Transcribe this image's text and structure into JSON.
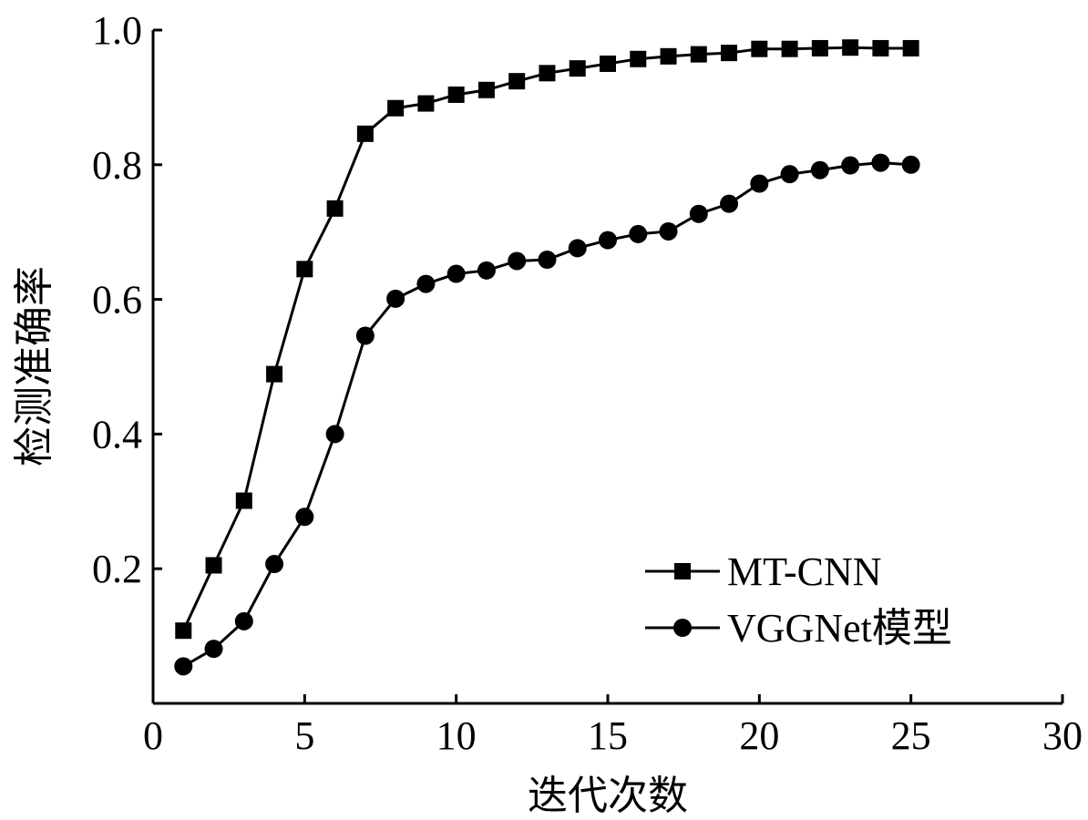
{
  "chart_data": {
    "type": "line",
    "title": "",
    "xlabel": "迭代次数",
    "ylabel": "检测准确率",
    "xlim": [
      0,
      30
    ],
    "ylim": [
      0,
      1.0
    ],
    "xticks": [
      0,
      5,
      10,
      15,
      20,
      25,
      30
    ],
    "xtick_labels": [
      "0",
      "5",
      "10",
      "15",
      "20",
      "25",
      "30"
    ],
    "yticks": [
      0.2,
      0.4,
      0.6,
      0.8,
      1.0
    ],
    "ytick_labels": [
      "0.2",
      "0.4",
      "0.6",
      "0.8",
      "1.0"
    ],
    "grid": false,
    "legend_position": "bottom-right",
    "x": [
      1,
      2,
      3,
      4,
      5,
      6,
      7,
      8,
      9,
      10,
      11,
      12,
      13,
      14,
      15,
      16,
      17,
      18,
      19,
      20,
      21,
      22,
      23,
      24,
      25
    ],
    "series": [
      {
        "name": "MT-CNN",
        "marker": "square",
        "color": "#000000",
        "values": [
          0.108,
          0.205,
          0.301,
          0.489,
          0.645,
          0.735,
          0.846,
          0.884,
          0.891,
          0.904,
          0.911,
          0.924,
          0.936,
          0.943,
          0.95,
          0.957,
          0.961,
          0.964,
          0.966,
          0.972,
          0.972,
          0.973,
          0.974,
          0.973,
          0.973
        ]
      },
      {
        "name": "VGGNet模型",
        "marker": "circle",
        "color": "#000000",
        "values": [
          0.055,
          0.081,
          0.122,
          0.207,
          0.277,
          0.4,
          0.546,
          0.601,
          0.623,
          0.638,
          0.643,
          0.657,
          0.659,
          0.676,
          0.688,
          0.697,
          0.701,
          0.727,
          0.742,
          0.772,
          0.786,
          0.792,
          0.799,
          0.803,
          0.8
        ]
      }
    ]
  }
}
